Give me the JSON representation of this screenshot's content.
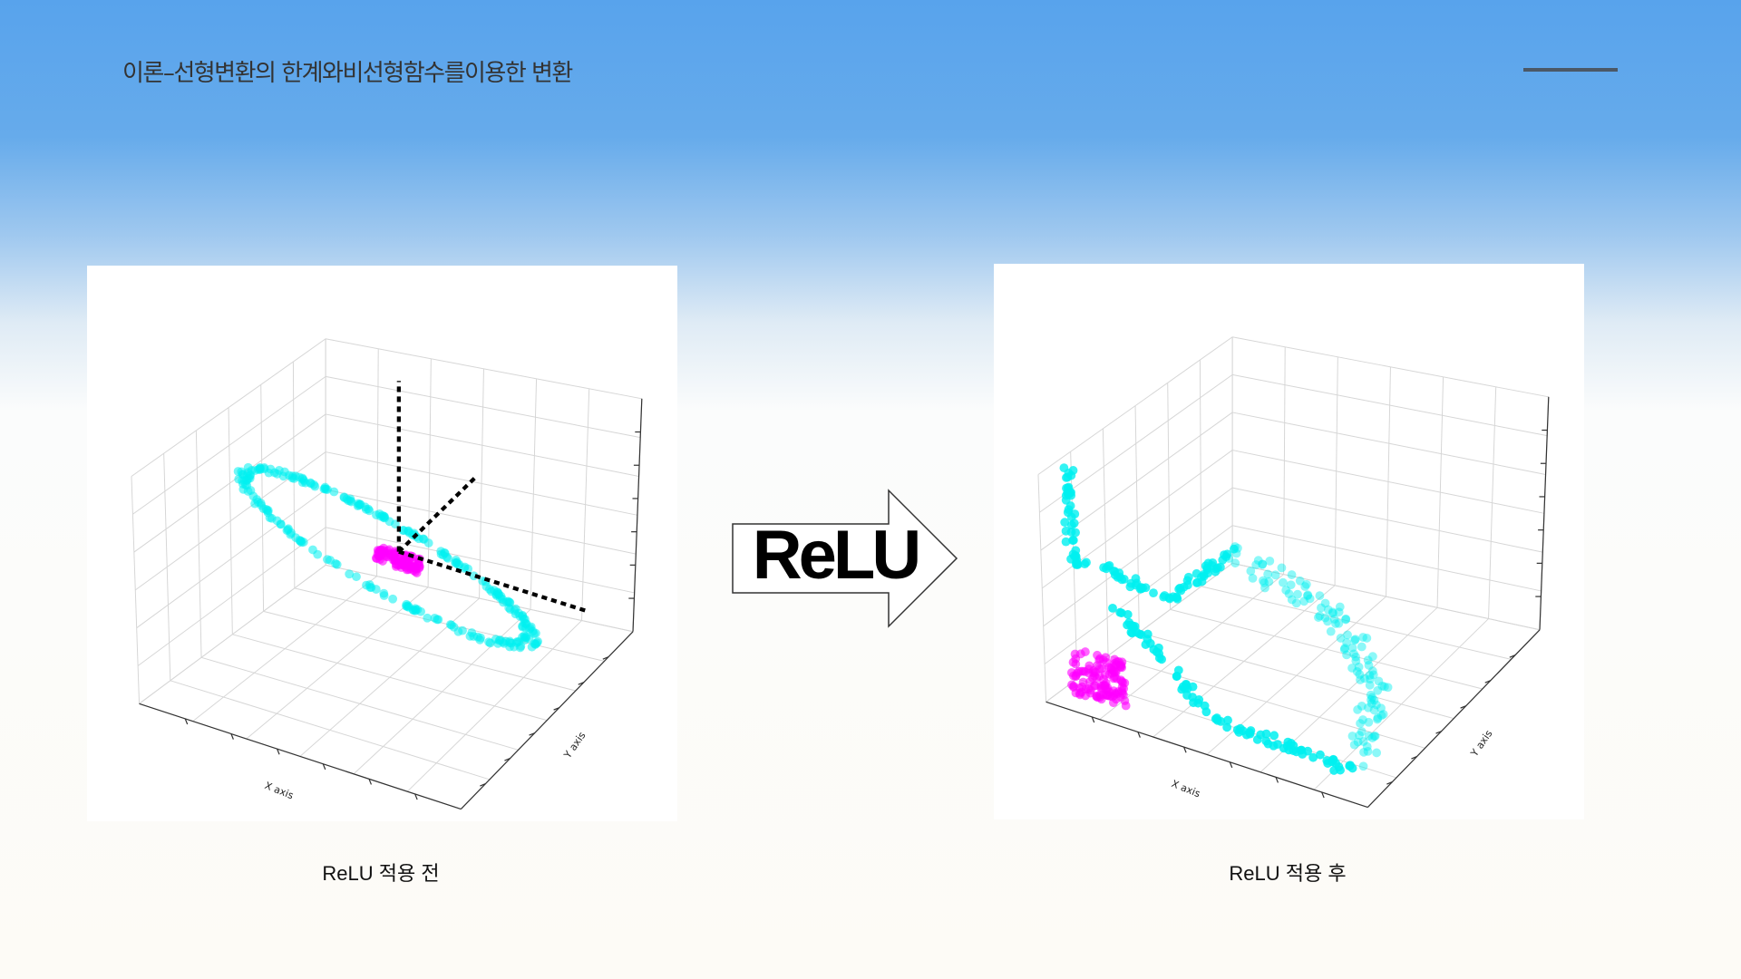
{
  "header": {
    "title": "이론–선형변환의 한계와비선형함수를이용한 변환"
  },
  "arrow": {
    "label": "ReLU"
  },
  "panels": [
    {
      "caption": "ReLU 적용 전",
      "x_axis": "X axis",
      "y_axis": "Y axis"
    },
    {
      "caption": "ReLU 적용 후",
      "x_axis": "X axis",
      "y_axis": "Y axis"
    }
  ]
}
